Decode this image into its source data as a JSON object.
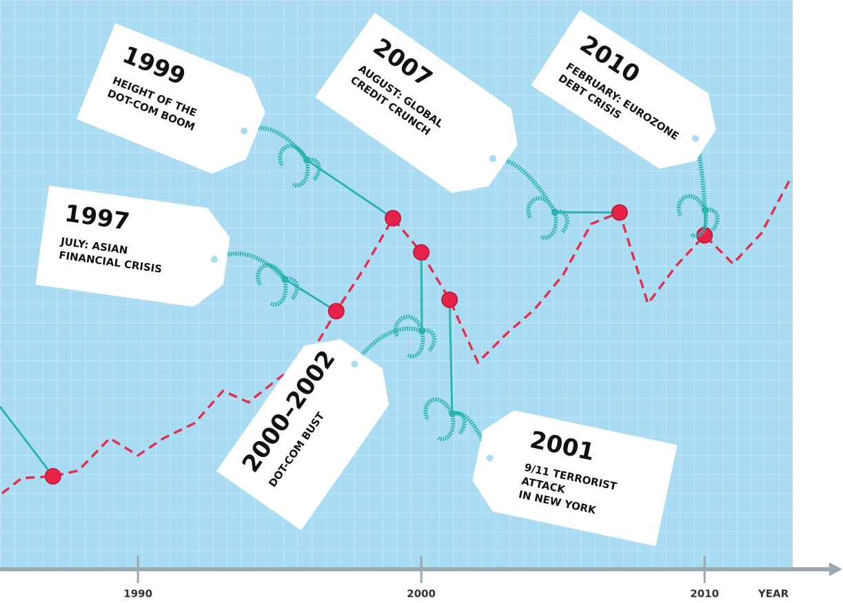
{
  "chart_data": {
    "type": "line",
    "xlabel": "YEAR",
    "x": [
      1985.2,
      1985.9,
      1987,
      1987.9,
      1989,
      1990,
      1990.9,
      1992,
      1993,
      1993.9,
      1995,
      1996,
      1997,
      1998,
      1999,
      2000,
      2001,
      2002,
      2003,
      2004,
      2005,
      2006,
      2007,
      2008,
      2009,
      2010,
      2011,
      2012,
      2013
    ],
    "series": [
      {
        "color": "#e0304d",
        "values": [
          4.0,
          4.8,
          4.9,
          5.2,
          6.9,
          6.0,
          6.9,
          7.7,
          9.4,
          8.8,
          10.1,
          11.1,
          13.6,
          15.9,
          18.5,
          16.7,
          14.2,
          10.9,
          12.4,
          13.7,
          15.5,
          18.2,
          18.8,
          14.0,
          16.0,
          17.6,
          16.1,
          17.7,
          20.5
        ]
      }
    ],
    "xlim": [
      1985.13,
      2013.11
    ],
    "ylim": [
      0,
      30
    ],
    "xticks": [
      1990,
      2000,
      2010
    ],
    "markers": [
      1987,
      1997,
      1999,
      2000,
      2001,
      2007,
      2010
    ],
    "marker_color": "#e8234a",
    "string_color": "#2bb3b3",
    "annotations": [
      {
        "x": 1999,
        "title": "1999",
        "lines": [
          "HEIGHT OF THE",
          "DOT-COM BOOM"
        ]
      },
      {
        "x": 1997,
        "title": "1997",
        "lines": [
          "JULY: ASIAN",
          "FINANCIAL CRISIS"
        ]
      },
      {
        "x": 2007,
        "title": "2007",
        "lines": [
          "AUGUST: GLOBAL",
          "CREDIT CRUNCH"
        ]
      },
      {
        "x": 2010,
        "title": "2010",
        "lines": [
          "FEBRUARY: EUROZONE",
          "DEBT CRISIS"
        ]
      },
      {
        "x": 2000,
        "title": "2000–2002",
        "lines": [
          "DOT-COM BUST"
        ]
      },
      {
        "x": 2001,
        "title": "2001",
        "lines": [
          "9/11 TERRORIST",
          "ATTACK",
          "IN NEW YORK"
        ]
      }
    ]
  }
}
